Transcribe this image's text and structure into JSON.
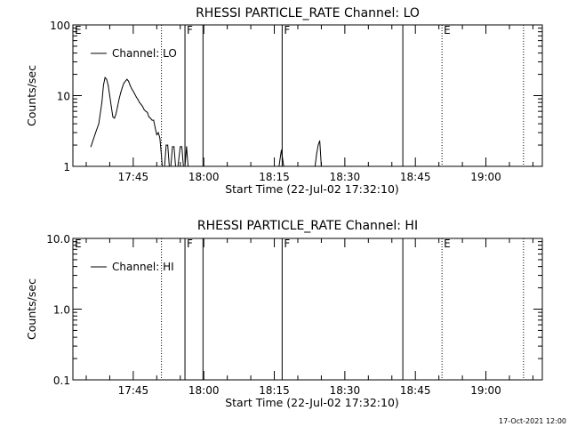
{
  "chart_data": [
    {
      "type": "line",
      "title": "RHESSI PARTICLE_RATE Channel: LO",
      "xlabel": "Start Time (22-Jul-02 17:32:10)",
      "ylabel": "Counts/sec",
      "y_scale": "log",
      "ylim": [
        1,
        100
      ],
      "y_ticks": [
        1,
        10,
        100
      ],
      "y_tick_labels": [
        "1",
        "10",
        "100"
      ],
      "xlim": [
        "17:32:10",
        "19:12:00"
      ],
      "x_ticks": [
        "17:45",
        "18:00",
        "18:15",
        "18:30",
        "18:45",
        "19:00"
      ],
      "grid": false,
      "legend": {
        "position": "top-left",
        "label": "Channel: LO"
      },
      "series": [
        {
          "name": "Channel: LO",
          "color": "#000000",
          "points": [
            [
              "17:36:00",
              1.9
            ],
            [
              "17:37:00",
              3.0
            ],
            [
              "17:37:40",
              4.0
            ],
            [
              "17:38:20",
              8.0
            ],
            [
              "17:38:40",
              14.0
            ],
            [
              "17:39:00",
              18.0
            ],
            [
              "17:39:20",
              17.0
            ],
            [
              "17:39:40",
              14.0
            ],
            [
              "17:40:00",
              10.0
            ],
            [
              "17:40:20",
              7.0
            ],
            [
              "17:40:40",
              5.0
            ],
            [
              "17:41:00",
              4.8
            ],
            [
              "17:41:20",
              5.5
            ],
            [
              "17:41:40",
              7.0
            ],
            [
              "17:42:00",
              9.0
            ],
            [
              "17:42:20",
              11.0
            ],
            [
              "17:42:40",
              13.0
            ],
            [
              "17:43:00",
              15.0
            ],
            [
              "17:43:20",
              16.0
            ],
            [
              "17:43:40",
              17.0
            ],
            [
              "17:44:00",
              16.0
            ],
            [
              "17:44:20",
              14.0
            ],
            [
              "17:44:40",
              12.5
            ],
            [
              "17:45:00",
              11.5
            ],
            [
              "17:45:20",
              10.5
            ],
            [
              "17:45:40",
              9.5
            ],
            [
              "17:46:00",
              8.8
            ],
            [
              "17:46:20",
              8.0
            ],
            [
              "17:46:40",
              7.5
            ],
            [
              "17:47:00",
              7.0
            ],
            [
              "17:47:20",
              6.3
            ],
            [
              "17:47:40",
              6.0
            ],
            [
              "17:48:00",
              5.8
            ],
            [
              "17:48:20",
              5.0
            ],
            [
              "17:48:40",
              4.8
            ],
            [
              "17:49:00",
              4.5
            ],
            [
              "17:49:20",
              4.5
            ],
            [
              "17:49:40",
              3.5
            ],
            [
              "17:50:00",
              2.8
            ],
            [
              "17:50:20",
              3.0
            ],
            [
              "17:50:40",
              2.5
            ],
            [
              "17:51:00",
              1.4
            ],
            [
              "17:51:10",
              1.0
            ],
            [
              "17:51:40",
              1.0
            ],
            [
              "17:52:00",
              2.0
            ],
            [
              "17:52:20",
              2.0
            ],
            [
              "17:52:40",
              1.0
            ],
            [
              "17:53:00",
              1.0
            ],
            [
              "17:53:20",
              1.9
            ],
            [
              "17:53:40",
              1.9
            ],
            [
              "17:54:00",
              1.0
            ],
            [
              "17:54:30",
              1.0
            ],
            [
              "17:55:00",
              1.9
            ],
            [
              "17:55:20",
              1.9
            ],
            [
              "17:55:40",
              1.0
            ],
            [
              "17:56:00",
              1.0
            ],
            [
              "17:56:20",
              1.9
            ],
            [
              "17:56:40",
              1.0
            ],
            [
              "18:16:00",
              1.0
            ],
            [
              "18:16:30",
              1.7
            ],
            [
              "18:17:00",
              1.0
            ],
            [
              "18:23:40",
              1.0
            ],
            [
              "18:24:00",
              1.5
            ],
            [
              "18:24:20",
              2.0
            ],
            [
              "18:24:40",
              2.3
            ],
            [
              "18:25:00",
              1.0
            ]
          ]
        }
      ],
      "markers": [
        {
          "label": "E",
          "time": "17:32:10",
          "style": "dotted"
        },
        {
          "label": "",
          "time": "17:51:00",
          "style": "dotted"
        },
        {
          "label": "F",
          "time": "17:56:00",
          "style": "solid"
        },
        {
          "label": "",
          "time": "17:59:50",
          "style": "solid"
        },
        {
          "label": "F",
          "time": "18:16:40",
          "style": "solid"
        },
        {
          "label": "",
          "time": "18:42:20",
          "style": "solid"
        },
        {
          "label": "E",
          "time": "18:50:40",
          "style": "dotted"
        },
        {
          "label": "",
          "time": "19:08:00",
          "style": "dotted"
        }
      ]
    },
    {
      "type": "line",
      "title": "RHESSI PARTICLE_RATE Channel: HI",
      "xlabel": "Start Time (22-Jul-02 17:32:10)",
      "ylabel": "Counts/sec",
      "y_scale": "log",
      "ylim": [
        0.1,
        10
      ],
      "y_ticks": [
        0.1,
        1,
        10
      ],
      "y_tick_labels": [
        "0.1",
        "1.0",
        "10.0"
      ],
      "xlim": [
        "17:32:10",
        "19:12:00"
      ],
      "x_ticks": [
        "17:45",
        "18:00",
        "18:15",
        "18:30",
        "18:45",
        "19:00"
      ],
      "grid": false,
      "legend": {
        "position": "top-left",
        "label": "Channel: HI"
      },
      "series": [
        {
          "name": "Channel: HI",
          "color": "#000000",
          "points": []
        }
      ],
      "markers": [
        {
          "label": "E",
          "time": "17:32:10",
          "style": "dotted"
        },
        {
          "label": "",
          "time": "17:51:00",
          "style": "dotted"
        },
        {
          "label": "F",
          "time": "17:56:00",
          "style": "solid"
        },
        {
          "label": "",
          "time": "17:59:50",
          "style": "solid"
        },
        {
          "label": "F",
          "time": "18:16:40",
          "style": "solid"
        },
        {
          "label": "",
          "time": "18:42:20",
          "style": "solid"
        },
        {
          "label": "E",
          "time": "18:50:40",
          "style": "dotted"
        },
        {
          "label": "",
          "time": "19:08:00",
          "style": "dotted"
        }
      ]
    }
  ],
  "timestamp": "17-Oct-2021 12:00"
}
